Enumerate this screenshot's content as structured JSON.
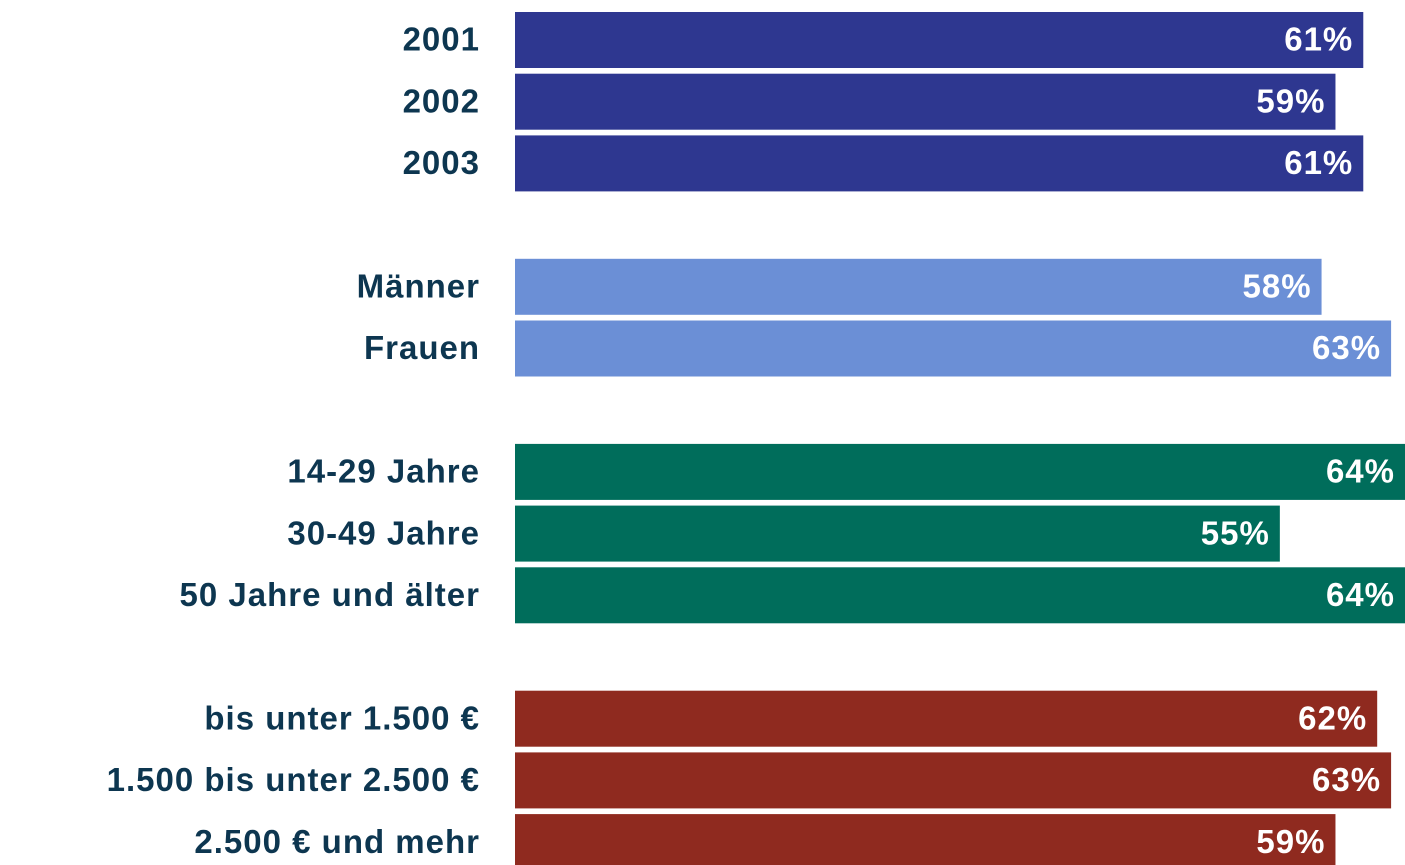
{
  "chart_data": {
    "type": "hbar",
    "categories": [
      "2001",
      "2002",
      "2003",
      null,
      "Männer",
      "Frauen",
      null,
      "14-29 Jahre",
      "30-49 Jahre",
      "50 Jahre und älter",
      null,
      "bis unter 1.500 €",
      "1.500 bis unter 2.500 €",
      "2.500 € und mehr"
    ],
    "values": [
      61,
      59,
      61,
      null,
      58,
      63,
      null,
      64,
      55,
      64,
      null,
      62,
      63,
      59
    ],
    "value_labels": [
      "61%",
      "59%",
      "61%",
      null,
      "58%",
      "63%",
      null,
      "64%",
      "55%",
      "64%",
      null,
      "62%",
      "63%",
      "59%"
    ],
    "colors": [
      "#2e3790",
      "#2e3790",
      "#2e3790",
      null,
      "#6b8fd6",
      "#6b8fd6",
      null,
      "#006d5b",
      "#006d5b",
      "#006d5b",
      null,
      "#8f2a1f",
      "#8f2a1f",
      "#8f2a1f"
    ]
  }
}
